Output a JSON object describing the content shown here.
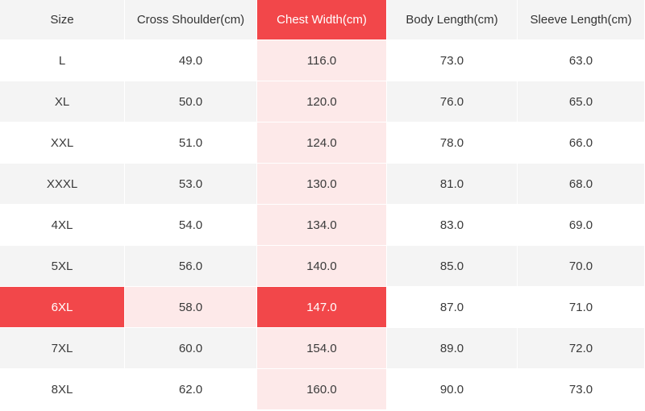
{
  "table": {
    "headers": [
      "Size",
      "Cross Shoulder(cm)",
      "Chest Width(cm)",
      "Body Length(cm)",
      "Sleeve Length(cm)"
    ],
    "rows": [
      [
        "L",
        "49.0",
        "116.0",
        "73.0",
        "63.0"
      ],
      [
        "XL",
        "50.0",
        "120.0",
        "76.0",
        "65.0"
      ],
      [
        "XXL",
        "51.0",
        "124.0",
        "78.0",
        "66.0"
      ],
      [
        "XXXL",
        "53.0",
        "130.0",
        "81.0",
        "68.0"
      ],
      [
        "4XL",
        "54.0",
        "134.0",
        "83.0",
        "69.0"
      ],
      [
        "5XL",
        "56.0",
        "140.0",
        "85.0",
        "70.0"
      ],
      [
        "6XL",
        "58.0",
        "147.0",
        "87.0",
        "71.0"
      ],
      [
        "7XL",
        "60.0",
        "154.0",
        "89.0",
        "72.0"
      ],
      [
        "8XL",
        "62.0",
        "160.0",
        "90.0",
        "73.0"
      ]
    ],
    "highlighted_column": "Chest Width(cm)",
    "highlighted_row": "6XL"
  },
  "colors": {
    "highlight_strong": "#f2474a",
    "highlight_light": "#fde9e9",
    "stripe": "#f4f4f4"
  }
}
